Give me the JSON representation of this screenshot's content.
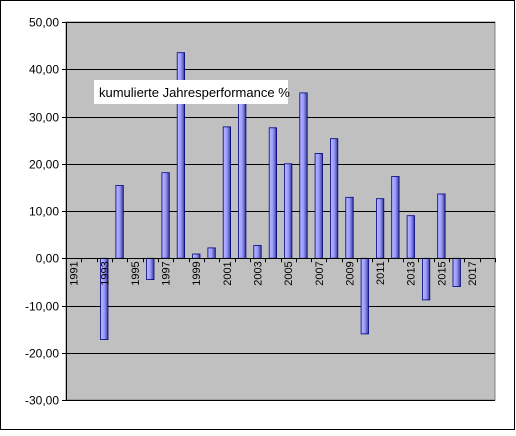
{
  "chart_data": {
    "type": "bar",
    "title": "kumulierte Jahresperformance %",
    "xlabel": "",
    "ylabel": "",
    "ylim": [
      -30,
      50
    ],
    "yticks": [
      -30,
      -20,
      -10,
      0,
      10,
      20,
      30,
      40,
      50
    ],
    "ytick_labels": [
      "-30,00",
      "-20,00",
      "-10,00",
      "0,00",
      "10,00",
      "20,00",
      "30,00",
      "40,00",
      "50,00"
    ],
    "categories": [
      "1991",
      "1992",
      "1993",
      "1994",
      "1995",
      "1996",
      "1997",
      "1998",
      "1999",
      "2000",
      "2001",
      "2002",
      "2003",
      "2004",
      "2005",
      "2006",
      "2007",
      "2008",
      "2009",
      "2010",
      "2011",
      "2012",
      "2013",
      "2014",
      "2015",
      "2016",
      "2017",
      "2018"
    ],
    "xtick_labels": [
      "1991",
      "1993",
      "1995",
      "1997",
      "1999",
      "2001",
      "2003",
      "2005",
      "2007",
      "2009",
      "2011",
      "2013",
      "2015",
      "2017"
    ],
    "values": [
      0,
      0,
      -17.2,
      15.4,
      0,
      -4.5,
      18.1,
      43.5,
      0.9,
      2.2,
      27.8,
      33.5,
      2.7,
      27.6,
      20.0,
      35.0,
      22.2,
      25.3,
      12.9,
      -16.0,
      12.6,
      17.3,
      9.0,
      -8.8,
      13.6,
      -6.0,
      0,
      0
    ],
    "grid": true,
    "colors": {
      "plot_background": "#c0c0c0",
      "bar_fill": "#9999ff",
      "bar_stroke": "#000080",
      "gridline": "#000000"
    }
  }
}
